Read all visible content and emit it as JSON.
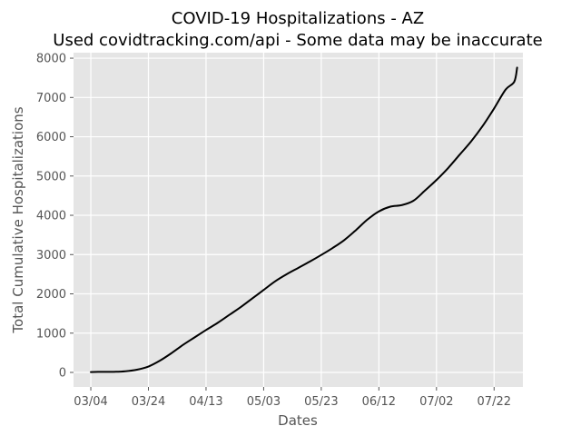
{
  "chart_data": {
    "type": "line",
    "title": "COVID-19 Hospitalizations - AZ",
    "subtitle": "Used covidtracking.com/api - Some data may be inaccurate",
    "xlabel": "Dates",
    "ylabel": "Total Cumulative Hospitalizations",
    "x_ticks": [
      "03/04",
      "03/24",
      "04/13",
      "05/03",
      "05/23",
      "06/12",
      "07/02",
      "07/22"
    ],
    "y_ticks": [
      "0",
      "1000",
      "2000",
      "3000",
      "4000",
      "5000",
      "6000",
      "7000",
      "8000"
    ],
    "ylim": [
      -370,
      8140
    ],
    "xlim": [
      "2020-02-27",
      "2020-08-01"
    ],
    "grid": true,
    "colors": {
      "plot_background": "#e5e5e5",
      "grid": "#ffffff",
      "line": "#000000"
    },
    "series": [
      {
        "x": [
          "2020-03-04",
          "2020-03-08",
          "2020-03-12",
          "2020-03-16",
          "2020-03-20",
          "2020-03-24",
          "2020-03-28",
          "2020-04-01",
          "2020-04-05",
          "2020-04-09",
          "2020-04-13",
          "2020-04-17",
          "2020-04-21",
          "2020-04-25",
          "2020-04-29",
          "2020-05-03",
          "2020-05-07",
          "2020-05-11",
          "2020-05-15",
          "2020-05-19",
          "2020-05-23",
          "2020-05-27",
          "2020-05-31",
          "2020-06-04",
          "2020-06-08",
          "2020-06-12",
          "2020-06-16",
          "2020-06-20",
          "2020-06-24",
          "2020-06-28",
          "2020-07-02",
          "2020-07-06",
          "2020-07-10",
          "2020-07-14",
          "2020-07-18",
          "2020-07-22",
          "2020-07-26",
          "2020-07-29",
          "2020-07-30"
        ],
        "values": [
          10,
          15,
          15,
          30,
          70,
          150,
          300,
          490,
          700,
          890,
          1080,
          1260,
          1460,
          1660,
          1880,
          2100,
          2320,
          2500,
          2660,
          2820,
          2990,
          3170,
          3370,
          3620,
          3890,
          4100,
          4220,
          4260,
          4370,
          4630,
          4900,
          5200,
          5540,
          5880,
          6270,
          6720,
          7200,
          7400,
          7760
        ]
      }
    ]
  }
}
